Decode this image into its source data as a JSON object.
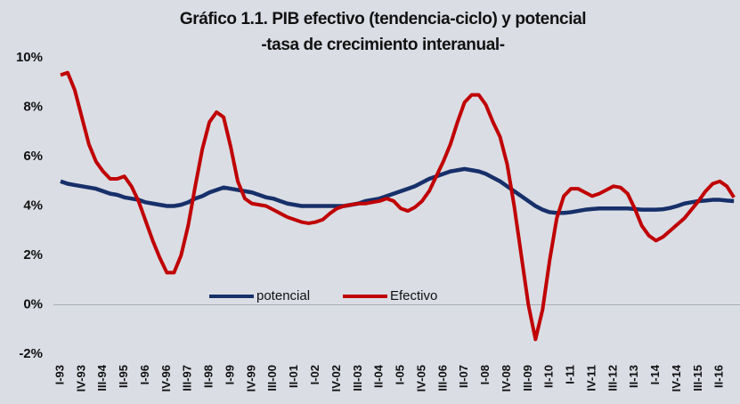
{
  "chart_data": {
    "type": "line",
    "title": "Gráfico 1.1. PIB efectivo (tendencia-ciclo) y potencial",
    "subtitle": "-tasa de crecimiento interanual-",
    "categories": [
      "I-93",
      null,
      null,
      "IV-93",
      null,
      null,
      "III-94",
      null,
      null,
      "II-95",
      null,
      null,
      "I-96",
      null,
      null,
      "IV-96",
      null,
      null,
      "III-97",
      null,
      null,
      "II-98",
      null,
      null,
      "I-99",
      null,
      null,
      "IV-99",
      null,
      null,
      "III-00",
      null,
      null,
      "II-01",
      null,
      null,
      "I-02",
      null,
      null,
      "IV-02",
      null,
      null,
      "III-03",
      null,
      null,
      "II-04",
      null,
      null,
      "I-05",
      null,
      null,
      "IV-05",
      null,
      null,
      "III-06",
      null,
      null,
      "II-07",
      null,
      null,
      "I-08",
      null,
      null,
      "IV-08",
      null,
      null,
      "III-09",
      null,
      null,
      "II-10",
      null,
      null,
      "I-11",
      null,
      null,
      "IV-11",
      null,
      null,
      "III-12",
      null,
      null,
      "II-13",
      null,
      null,
      "I-14",
      null,
      null,
      "IV-14",
      null,
      null,
      "III-15",
      null,
      null,
      "II-16",
      null,
      null
    ],
    "series": [
      {
        "name": "potencial",
        "color": "#17306a",
        "values": [
          5.0,
          4.9,
          4.85,
          4.8,
          4.75,
          4.7,
          4.6,
          4.5,
          4.45,
          4.35,
          4.3,
          4.25,
          4.15,
          4.1,
          4.05,
          4.0,
          4.0,
          4.05,
          4.15,
          4.3,
          4.4,
          4.55,
          4.65,
          4.75,
          4.7,
          4.65,
          4.6,
          4.55,
          4.45,
          4.35,
          4.3,
          4.2,
          4.1,
          4.05,
          4.0,
          4.0,
          4.0,
          4.0,
          4.0,
          4.0,
          4.0,
          4.05,
          4.1,
          4.2,
          4.25,
          4.3,
          4.4,
          4.5,
          4.6,
          4.7,
          4.8,
          4.95,
          5.1,
          5.2,
          5.3,
          5.4,
          5.45,
          5.5,
          5.45,
          5.4,
          5.3,
          5.15,
          5.0,
          4.8,
          4.6,
          4.4,
          4.2,
          4.0,
          3.85,
          3.75,
          3.72,
          3.72,
          3.75,
          3.8,
          3.85,
          3.88,
          3.9,
          3.9,
          3.9,
          3.9,
          3.9,
          3.88,
          3.85,
          3.85,
          3.85,
          3.87,
          3.92,
          4.0,
          4.1,
          4.15,
          4.2,
          4.22,
          4.25,
          4.25,
          4.22,
          4.2
        ]
      },
      {
        "name": "Efectivo",
        "color": "#c00000",
        "values": [
          9.3,
          9.4,
          8.7,
          7.6,
          6.5,
          5.8,
          5.4,
          5.1,
          5.1,
          5.2,
          4.8,
          4.2,
          3.4,
          2.6,
          1.9,
          1.3,
          1.3,
          2.0,
          3.2,
          4.8,
          6.3,
          7.4,
          7.8,
          7.6,
          6.4,
          5.0,
          4.3,
          4.1,
          4.05,
          4.0,
          3.85,
          3.7,
          3.55,
          3.45,
          3.35,
          3.3,
          3.35,
          3.45,
          3.7,
          3.9,
          4.0,
          4.05,
          4.1,
          4.1,
          4.15,
          4.2,
          4.3,
          4.2,
          3.9,
          3.8,
          3.95,
          4.2,
          4.6,
          5.2,
          5.8,
          6.5,
          7.4,
          8.2,
          8.5,
          8.5,
          8.1,
          7.4,
          6.8,
          5.7,
          4.0,
          2.0,
          0.0,
          -1.4,
          -0.2,
          1.8,
          3.5,
          4.4,
          4.7,
          4.7,
          4.55,
          4.4,
          4.5,
          4.65,
          4.8,
          4.75,
          4.5,
          3.9,
          3.2,
          2.8,
          2.6,
          2.75,
          3.0,
          3.25,
          3.5,
          3.85,
          4.2,
          4.6,
          4.9,
          5.0,
          4.8,
          4.35
        ]
      }
    ],
    "ylim": [
      -2,
      10
    ],
    "yticks": [
      {
        "value": -2,
        "label": "-2%"
      },
      {
        "value": 0,
        "label": "0%"
      },
      {
        "value": 2,
        "label": "2%"
      },
      {
        "value": 4,
        "label": "4%"
      },
      {
        "value": 6,
        "label": "6%"
      },
      {
        "value": 8,
        "label": "8%"
      },
      {
        "value": 10,
        "label": "10%"
      }
    ],
    "grid": false,
    "legend": "center"
  }
}
